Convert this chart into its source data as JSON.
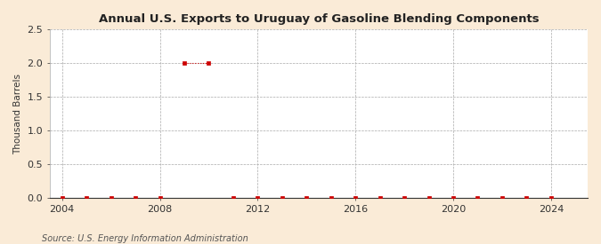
{
  "title": "Annual U.S. Exports to Uruguay of Gasoline Blending Components",
  "ylabel": "Thousand Barrels",
  "source": "Source: U.S. Energy Information Administration",
  "background_color": "#faebd7",
  "plot_background_color": "#ffffff",
  "marker_color": "#cc0000",
  "marker_style": "s",
  "marker_size": 3,
  "dot_line_color": "#cc0000",
  "xlim": [
    2003.5,
    2025.5
  ],
  "ylim": [
    0,
    2.5
  ],
  "yticks": [
    0.0,
    0.5,
    1.0,
    1.5,
    2.0,
    2.5
  ],
  "xticks": [
    2004,
    2008,
    2012,
    2016,
    2020,
    2024
  ],
  "grid_color": "#aaaaaa",
  "grid_style": "--",
  "years": [
    2004,
    2005,
    2006,
    2007,
    2008,
    2009,
    2010,
    2011,
    2012,
    2013,
    2014,
    2015,
    2016,
    2017,
    2018,
    2019,
    2020,
    2021,
    2022,
    2023,
    2024
  ],
  "values": [
    0,
    0,
    0,
    0,
    0,
    2.0,
    2.0,
    0,
    0,
    0,
    0,
    0,
    0,
    0,
    0,
    0,
    0,
    0,
    0,
    0,
    0
  ]
}
